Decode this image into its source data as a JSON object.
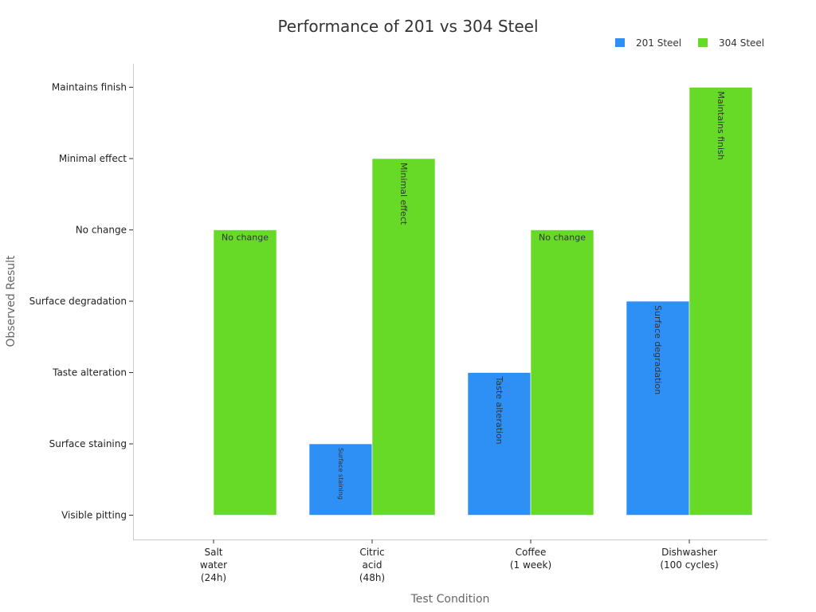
{
  "chart_data": {
    "type": "bar",
    "title": "Performance of 201 vs 304 Steel",
    "xlabel": "Test Condition",
    "ylabel": "Observed Result",
    "categories": [
      [
        "Salt",
        "water",
        "(24h)"
      ],
      [
        "Citric",
        "acid",
        "(48h)"
      ],
      [
        "Coffee",
        "(1 week)"
      ],
      [
        "Dishwasher",
        "(100 cycles)"
      ]
    ],
    "y_levels": [
      "Visible pitting",
      "Surface staining",
      "Taste alteration",
      "Surface degradation",
      "No change",
      "Minimal effect",
      "Maintains finish"
    ],
    "series": [
      {
        "name": "201 Steel",
        "color": "#2e90f5",
        "values": [
          0,
          1,
          2,
          3
        ],
        "labels": [
          "Visible pitting",
          "Surface staining",
          "Taste alteration",
          "Surface degradation"
        ]
      },
      {
        "name": "304 Steel",
        "color": "#66da26",
        "values": [
          4,
          5,
          4,
          6
        ],
        "labels": [
          "No change",
          "Minimal effect",
          "No change",
          "Maintains finish"
        ]
      }
    ],
    "ylim": [
      0,
      6
    ],
    "grid": false,
    "legend": "top-right"
  }
}
